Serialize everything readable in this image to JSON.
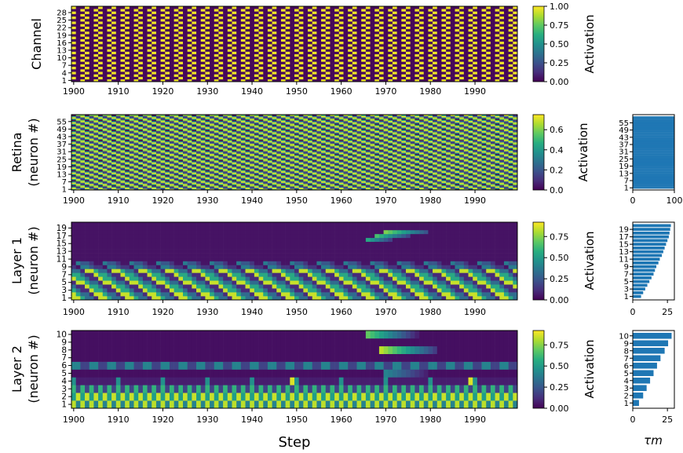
{
  "xlabel": "Step",
  "chart_data": [
    {
      "type": "heatmap",
      "panel": "channel",
      "ylabel": [
        "Channel"
      ],
      "xticks": [
        "1900",
        "1910",
        "1920",
        "1930",
        "1940",
        "1950",
        "1960",
        "1970",
        "1980",
        "1990"
      ],
      "xlim": [
        1899.5,
        1999.5
      ],
      "ytick_labels": [
        "1",
        "4",
        "7",
        "10",
        "13",
        "16",
        "19",
        "22",
        "25",
        "28"
      ],
      "rows": 30,
      "colorscale": "viridis",
      "colorbar": {
        "label": "Activation",
        "range": [
          0,
          1
        ],
        "ticks": [
          "0.00",
          "0.25",
          "0.50",
          "0.75",
          "1.00"
        ]
      }
    },
    {
      "type": "heatmap",
      "panel": "retina",
      "ylabel": [
        "Retina",
        "(neuron #)"
      ],
      "xticks": [
        "1900",
        "1910",
        "1920",
        "1930",
        "1940",
        "1950",
        "1960",
        "1970",
        "1980",
        "1990"
      ],
      "xlim": [
        1899.5,
        1999.5
      ],
      "ytick_labels": [
        "1",
        "7",
        "13",
        "19",
        "25",
        "31",
        "37",
        "43",
        "49",
        "55"
      ],
      "rows": 60,
      "colorscale": "viridis",
      "colorbar": {
        "label": "Activation",
        "range": [
          0,
          0.75
        ],
        "ticks": [
          "0.0",
          "0.2",
          "0.4",
          "0.6"
        ]
      },
      "tau": {
        "type": "bar",
        "orientation": "horizontal",
        "xlim": [
          0,
          100
        ],
        "xticks": [
          "0",
          "100"
        ],
        "values": [
          100,
          100,
          100,
          100,
          100,
          100,
          100,
          100,
          100,
          100,
          100,
          100,
          100,
          100,
          100,
          100,
          100,
          100,
          100,
          100,
          100,
          100,
          100,
          100,
          100,
          100,
          100,
          100,
          100,
          100,
          100,
          100,
          100,
          100,
          100,
          100,
          100,
          100,
          100,
          100,
          100,
          100,
          100,
          100,
          100,
          100,
          100,
          100,
          100,
          100,
          100,
          100,
          100,
          100,
          100,
          100,
          100,
          100,
          100,
          100
        ]
      }
    },
    {
      "type": "heatmap",
      "panel": "layer1",
      "ylabel": [
        "Layer 1",
        "(neuron #)"
      ],
      "xticks": [
        "1900",
        "1910",
        "1920",
        "1930",
        "1940",
        "1950",
        "1960",
        "1970",
        "1980",
        "1990"
      ],
      "xlim": [
        1899.5,
        1999.5
      ],
      "ytick_labels": [
        "1",
        "3",
        "5",
        "7",
        "9",
        "11",
        "13",
        "15",
        "17",
        "19"
      ],
      "rows": 20,
      "colorscale": "viridis",
      "colorbar": {
        "label": "Activation",
        "range": [
          0,
          0.92
        ],
        "ticks": [
          "0.00",
          "0.25",
          "0.50",
          "0.75"
        ]
      },
      "tau": {
        "type": "bar",
        "orientation": "horizontal",
        "xlim": [
          0,
          30
        ],
        "xticks": [
          "0",
          "25"
        ],
        "values": [
          6,
          7.5,
          9,
          10.5,
          12,
          13.5,
          15,
          16,
          17,
          18.5,
          19.5,
          21,
          22,
          23,
          24,
          25,
          26,
          26.5,
          27,
          27.5
        ]
      }
    },
    {
      "type": "heatmap",
      "panel": "layer2",
      "ylabel": [
        "Layer 2",
        "(neuron #)"
      ],
      "xticks": [
        "1900",
        "1910",
        "1920",
        "1930",
        "1940",
        "1950",
        "1960",
        "1970",
        "1980",
        "1990"
      ],
      "xlim": [
        1899.5,
        1999.5
      ],
      "ytick_labels": [
        "1",
        "2",
        "3",
        "4",
        "5",
        "6",
        "7",
        "8",
        "9",
        "10"
      ],
      "rows": 10,
      "colorscale": "viridis",
      "colorbar": {
        "label": "Activation",
        "range": [
          0,
          0.92
        ],
        "ticks": [
          "0.00",
          "0.25",
          "0.50",
          "0.75"
        ]
      },
      "tau": {
        "type": "bar",
        "orientation": "horizontal",
        "xlim": [
          0,
          30
        ],
        "xticks": [
          "0",
          "25"
        ],
        "values": [
          4.5,
          7.5,
          10,
          12.5,
          15,
          17.5,
          20,
          23,
          25.5,
          28
        ],
        "xlabel": "τm"
      }
    }
  ]
}
